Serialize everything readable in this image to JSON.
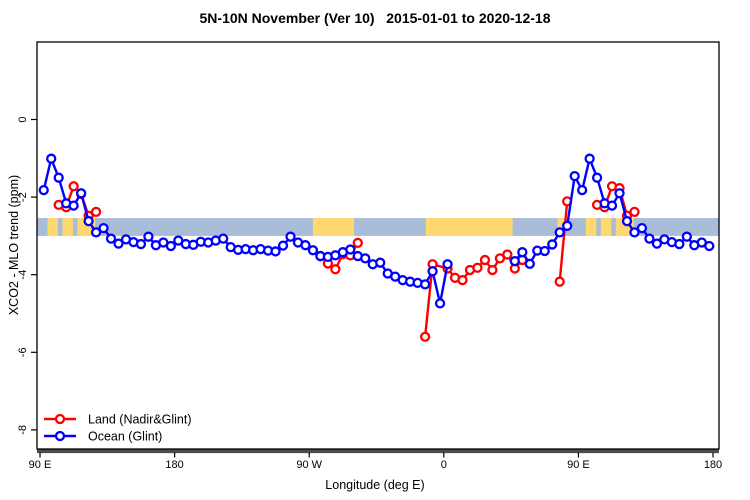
{
  "chart_data": {
    "type": "line",
    "title": "5N-10N November (Ver 10)   2015-01-01 to 2020-12-18",
    "xlabel": "Longitude (deg E)",
    "ylabel": "XCO2 - MLO trend (ppm)",
    "x_axis": {
      "min": 90,
      "max": 540,
      "ticks": [
        90,
        180,
        270,
        360,
        450,
        540
      ],
      "tick_labels": [
        "90 E",
        "180",
        "90 W",
        "0",
        "90 E",
        "180"
      ]
    },
    "y_axis": {
      "min": -8.5,
      "max": 2,
      "ticks": [
        0,
        -2,
        -4,
        -6,
        -8
      ],
      "tick_labels": [
        "0",
        "-2",
        "-4",
        "-6",
        "-8"
      ]
    },
    "grid": false,
    "legend": {
      "position": "bottom-left",
      "items": [
        "Land (Nadir&Glint)",
        "Ocean (Glint)"
      ]
    },
    "map_strip": {
      "comment": "world-map latitude band drawn across plot",
      "ocean_color": "#A9BCD8",
      "land_color": "#FFD871",
      "value_top": -2.54,
      "value_bottom": -3.0,
      "land_patches_lon": [
        [
          95,
          102
        ],
        [
          105,
          112
        ],
        [
          115,
          127
        ],
        [
          272.5,
          300
        ],
        [
          348,
          406
        ],
        [
          436,
          441
        ],
        [
          455,
          462
        ],
        [
          465,
          472
        ],
        [
          475,
          487
        ]
      ]
    },
    "axis_bar": {
      "color": "#4d4d4d"
    },
    "series": [
      {
        "name": "Land (Nadir&Glint)",
        "color": "#FF0000",
        "segments": [
          [
            [
              102.5,
              -2.2
            ],
            [
              107.5,
              -2.26
            ],
            [
              112.5,
              -1.72
            ],
            [
              117.5,
              -1.92
            ],
            [
              122.5,
              -2.48
            ],
            [
              127.5,
              -2.38
            ]
          ],
          [
            [
              277.5,
              -3.52
            ],
            [
              282.5,
              -3.71
            ],
            [
              287.5,
              -3.86
            ],
            [
              292.5,
              -3.47
            ],
            [
              297.5,
              -3.5
            ],
            [
              302.5,
              -3.18
            ]
          ],
          [
            [
              347.5,
              -5.6
            ],
            [
              352.5,
              -3.73
            ],
            [
              362.5,
              -3.84
            ],
            [
              367.5,
              -4.08
            ],
            [
              372.5,
              -4.14
            ],
            [
              377.5,
              -3.88
            ],
            [
              382.5,
              -3.82
            ],
            [
              387.5,
              -3.62
            ],
            [
              392.5,
              -3.88
            ],
            [
              397.5,
              -3.58
            ],
            [
              402.5,
              -3.48
            ],
            [
              407.5,
              -3.84
            ],
            [
              412.5,
              -3.62
            ]
          ],
          [
            [
              437.5,
              -4.18
            ],
            [
              442.5,
              -2.11
            ]
          ],
          [
            [
              462.5,
              -2.2
            ],
            [
              467.5,
              -2.26
            ],
            [
              472.5,
              -1.72
            ],
            [
              477.5,
              -1.77
            ],
            [
              482.5,
              -2.48
            ],
            [
              487.5,
              -2.38
            ]
          ]
        ]
      },
      {
        "name": "Ocean (Glint)",
        "color": "#0000FF",
        "segments": [
          [
            [
              92.5,
              -1.82
            ],
            [
              97.5,
              -1.01
            ],
            [
              102.5,
              -1.5
            ],
            [
              107.5,
              -2.16
            ],
            [
              112.5,
              -2.22
            ],
            [
              117.5,
              -1.9
            ],
            [
              122.5,
              -2.62
            ],
            [
              127.5,
              -2.91
            ],
            [
              132.5,
              -2.8
            ],
            [
              137.5,
              -3.07
            ],
            [
              142.5,
              -3.2
            ],
            [
              147.5,
              -3.09
            ],
            [
              152.5,
              -3.16
            ],
            [
              157.5,
              -3.21
            ],
            [
              162.5,
              -3.02
            ],
            [
              167.5,
              -3.24
            ],
            [
              172.5,
              -3.17
            ],
            [
              177.5,
              -3.26
            ],
            [
              182.5,
              -3.12
            ],
            [
              187.5,
              -3.21
            ],
            [
              192.5,
              -3.23
            ],
            [
              197.5,
              -3.15
            ],
            [
              202.5,
              -3.17
            ],
            [
              207.5,
              -3.12
            ],
            [
              212.5,
              -3.07
            ],
            [
              217.5,
              -3.29
            ],
            [
              222.5,
              -3.36
            ],
            [
              227.5,
              -3.34
            ],
            [
              232.5,
              -3.37
            ],
            [
              237.5,
              -3.34
            ],
            [
              242.5,
              -3.38
            ],
            [
              247.5,
              -3.4
            ],
            [
              252.5,
              -3.25
            ],
            [
              257.5,
              -3.02
            ],
            [
              262.5,
              -3.17
            ],
            [
              267.5,
              -3.24
            ],
            [
              272.5,
              -3.37
            ],
            [
              277.5,
              -3.52
            ],
            [
              282.5,
              -3.54
            ],
            [
              287.5,
              -3.5
            ],
            [
              292.5,
              -3.42
            ],
            [
              297.5,
              -3.35
            ],
            [
              302.5,
              -3.52
            ],
            [
              307.5,
              -3.58
            ],
            [
              312.5,
              -3.73
            ],
            [
              317.5,
              -3.69
            ],
            [
              322.5,
              -3.97
            ],
            [
              327.5,
              -4.05
            ],
            [
              332.5,
              -4.14
            ],
            [
              337.5,
              -4.18
            ],
            [
              342.5,
              -4.21
            ],
            [
              347.5,
              -4.25
            ],
            [
              352.5,
              -3.91
            ],
            [
              357.5,
              -4.74
            ],
            [
              362.5,
              -3.73
            ]
          ],
          [
            [
              407.5,
              -3.65
            ],
            [
              412.5,
              -3.42
            ],
            [
              417.5,
              -3.72
            ],
            [
              422.5,
              -3.38
            ],
            [
              427.5,
              -3.39
            ],
            [
              432.5,
              -3.22
            ],
            [
              437.5,
              -2.91
            ],
            [
              442.5,
              -2.74
            ],
            [
              447.5,
              -1.46
            ],
            [
              452.5,
              -1.82
            ],
            [
              457.5,
              -1.01
            ],
            [
              462.5,
              -1.5
            ],
            [
              467.5,
              -2.16
            ],
            [
              472.5,
              -2.22
            ],
            [
              477.5,
              -1.9
            ],
            [
              482.5,
              -2.62
            ],
            [
              487.5,
              -2.91
            ],
            [
              492.5,
              -2.8
            ],
            [
              497.5,
              -3.07
            ],
            [
              502.5,
              -3.2
            ],
            [
              507.5,
              -3.09
            ],
            [
              512.5,
              -3.16
            ],
            [
              517.5,
              -3.21
            ],
            [
              522.5,
              -3.02
            ],
            [
              527.5,
              -3.24
            ],
            [
              532.5,
              -3.17
            ],
            [
              537.5,
              -3.26
            ]
          ]
        ]
      }
    ]
  }
}
